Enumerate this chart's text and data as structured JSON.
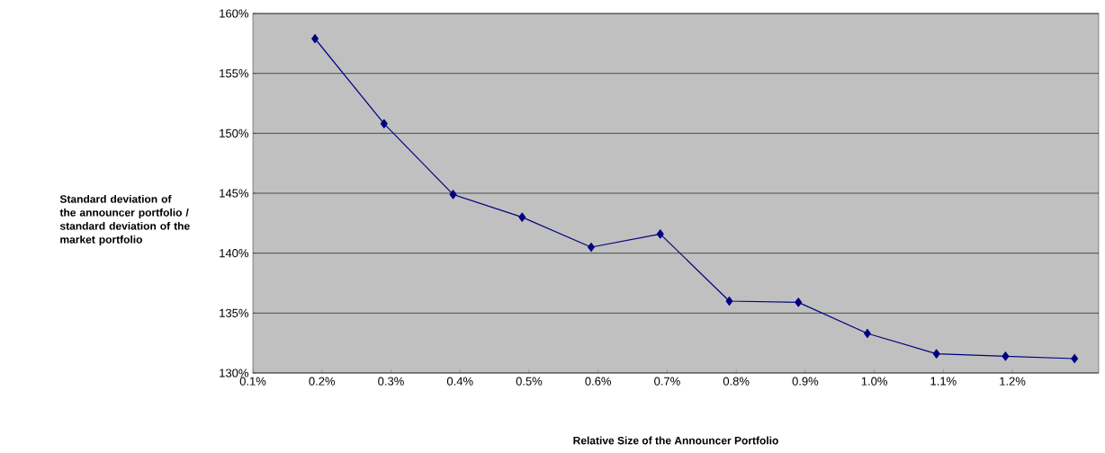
{
  "chart_data": {
    "type": "line",
    "xlabel": "Relative Size of the Announcer Portfolio",
    "ylabel": "Standard deviation of the announcer portfolio / standard deviation of the market portfolio",
    "x": [
      0.19,
      0.29,
      0.39,
      0.49,
      0.59,
      0.69,
      0.79,
      0.89,
      0.99,
      1.09,
      1.19,
      1.29
    ],
    "series": [
      {
        "color": "#000080",
        "values": [
          157.9,
          150.8,
          144.9,
          143.0,
          140.5,
          141.6,
          136.0,
          135.9,
          133.3,
          131.6,
          131.4,
          131.2
        ]
      }
    ],
    "xlim": [
      0.1,
      1.325
    ],
    "ylim": [
      130,
      160
    ],
    "xticks": [
      {
        "value": 0.1,
        "label": "0.1%"
      },
      {
        "value": 0.2,
        "label": "0.2%"
      },
      {
        "value": 0.3,
        "label": "0.3%"
      },
      {
        "value": 0.4,
        "label": "0.4%"
      },
      {
        "value": 0.5,
        "label": "0.5%"
      },
      {
        "value": 0.6,
        "label": "0.6%"
      },
      {
        "value": 0.7,
        "label": "0.7%"
      },
      {
        "value": 0.8,
        "label": "0.8%"
      },
      {
        "value": 0.9,
        "label": "0.9%"
      },
      {
        "value": 1.0,
        "label": "1.0%"
      },
      {
        "value": 1.1,
        "label": "1.1%"
      },
      {
        "value": 1.2,
        "label": "1.2%"
      }
    ],
    "yticks": [
      {
        "value": 130,
        "label": "130%"
      },
      {
        "value": 135,
        "label": "135%"
      },
      {
        "value": 140,
        "label": "140%"
      },
      {
        "value": 145,
        "label": "145%"
      },
      {
        "value": 150,
        "label": "150%"
      },
      {
        "value": 155,
        "label": "155%"
      },
      {
        "value": 160,
        "label": "160%"
      }
    ],
    "grid": "y",
    "marker": "diamond",
    "line_style": "solid"
  }
}
